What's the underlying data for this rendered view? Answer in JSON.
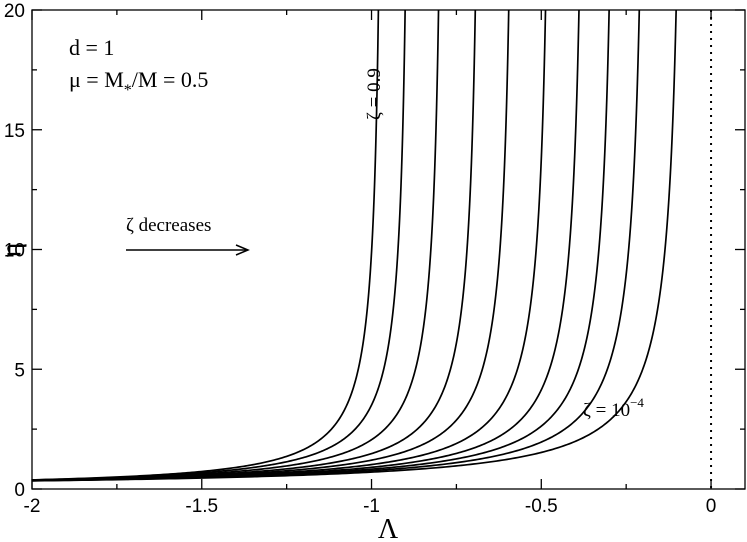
{
  "chart_data": {
    "type": "line",
    "xlabel": "Λ",
    "ylabel": "η",
    "xlim": [
      -2,
      0.1
    ],
    "ylim": [
      0,
      20
    ],
    "x_ticks": [
      -2,
      -1.5,
      -1,
      -0.5,
      0
    ],
    "x_tick_labels": [
      "-2",
      "-1.5",
      "-1",
      "-0.5",
      "0"
    ],
    "y_ticks": [
      0,
      5,
      10,
      15,
      20
    ],
    "y_tick_labels": [
      "0",
      "5",
      "10",
      "15",
      "20"
    ],
    "grid": false,
    "legend": "none",
    "reference_line": {
      "x": 0,
      "style": "dotted"
    },
    "params": {
      "d_label": "d = 1",
      "mu_label": "μ = M",
      "mu_sub": "*",
      "mu_rest": "/M = 0.5"
    },
    "annotations": {
      "top_curve": "ζ = 0.9",
      "bottom_curve_prefix": "ζ = 10",
      "bottom_curve_exp": "−4",
      "arrow_text": "ζ decreases"
    },
    "series_asymptotes": [
      -0.96,
      -0.88,
      -0.78,
      -0.67,
      -0.57,
      -0.46,
      -0.36,
      -0.27,
      -0.18,
      -0.07
    ],
    "series_samples": [
      {
        "x": [
          -2,
          -1.5,
          -1.2,
          -1.05,
          -1.0,
          -0.97
        ],
        "y": [
          0.38,
          0.9,
          2.2,
          5.0,
          11.0,
          20
        ]
      },
      {
        "x": [
          -2,
          -1.5,
          -1.0,
          -0.5,
          -0.2,
          -0.07
        ],
        "y": [
          0.34,
          0.6,
          1.0,
          2.3,
          6.0,
          20
        ]
      }
    ]
  }
}
